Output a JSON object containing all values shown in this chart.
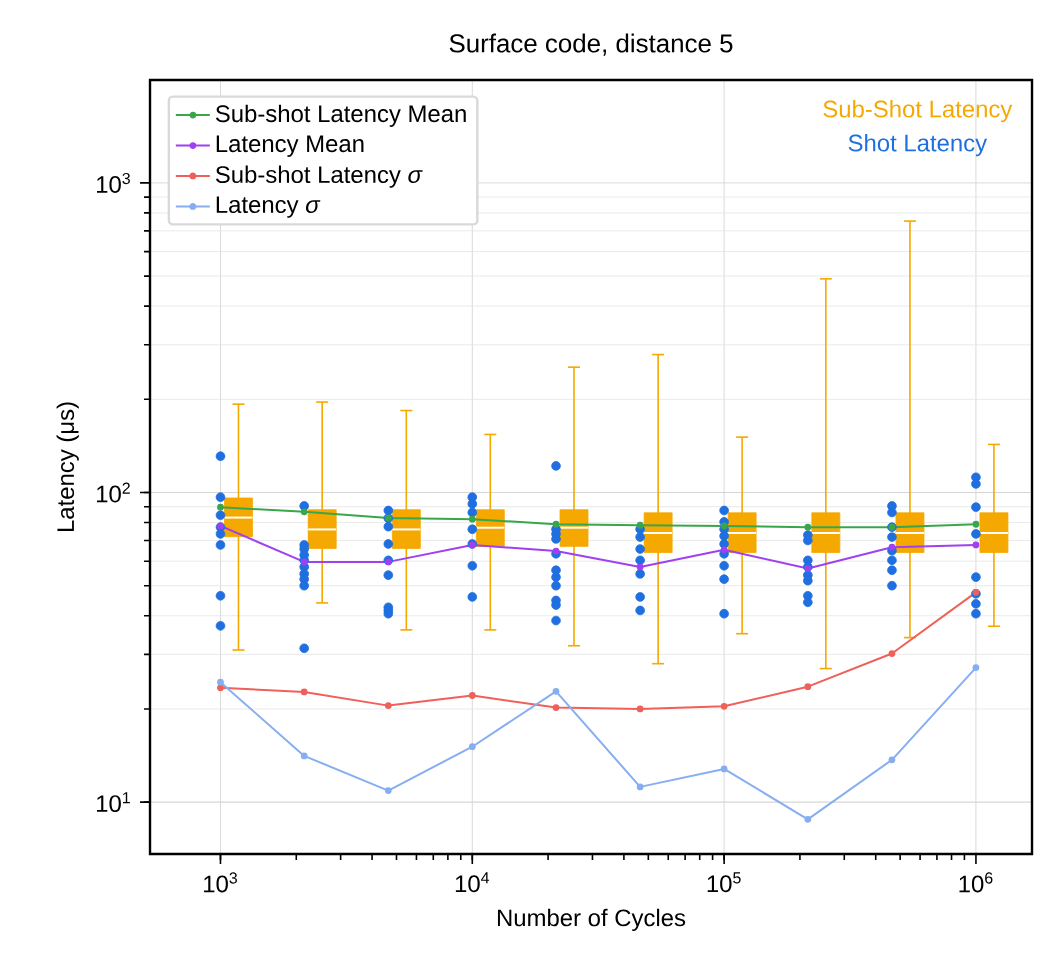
{
  "chart_data": {
    "type": "line",
    "title": "Surface code, distance 5",
    "xlabel": "Number of Cycles",
    "ylabel": "Latency (μs)",
    "log": "xy",
    "grid": true,
    "legend": "top left",
    "marker": "circle",
    "line_style": "solid",
    "x": [
      1000,
      2150,
      4640,
      10000,
      21500,
      46400,
      100000,
      215000,
      464000,
      1000000
    ],
    "xlim": [
      525,
      1670000
    ],
    "ylim": [
      6.8,
      2150
    ],
    "xticks": [
      {
        "value": 1000,
        "label": "10$^{3}$"
      },
      {
        "value": 10000,
        "label": "10$^{4}$"
      },
      {
        "value": 100000,
        "label": "10$^{5}$"
      },
      {
        "value": 1000000,
        "label": "10$^{6}$"
      }
    ],
    "yticks": [
      {
        "value": 10,
        "label": "10$^{1}$"
      },
      {
        "value": 100,
        "label": "10$^{2}$"
      },
      {
        "value": 1000,
        "label": "10$^{3}$"
      }
    ],
    "series": [
      {
        "type": "box",
        "name": "Sub-Shot Latency",
        "color": "#f5a800",
        "boxes": [
          {
            "low": 31,
            "q1": 72,
            "median": 83,
            "q3": 96,
            "high": 193
          },
          {
            "low": 44,
            "q1": 66,
            "median": 76,
            "q3": 88,
            "high": 196
          },
          {
            "low": 36,
            "q1": 66,
            "median": 76,
            "q3": 88,
            "high": 184
          },
          {
            "low": 36,
            "q1": 67,
            "median": 77,
            "q3": 88,
            "high": 154
          },
          {
            "low": 32,
            "q1": 67,
            "median": 77,
            "q3": 88,
            "high": 254
          },
          {
            "low": 28,
            "q1": 64,
            "median": 74,
            "q3": 86,
            "high": 279
          },
          {
            "low": 35,
            "q1": 64,
            "median": 74,
            "q3": 86,
            "high": 151
          },
          {
            "low": 27,
            "q1": 64,
            "median": 74,
            "q3": 86,
            "high": 490
          },
          {
            "low": 34,
            "q1": 64,
            "median": 74,
            "q3": 86,
            "high": 753
          },
          {
            "low": 37,
            "q1": 64,
            "median": 74,
            "q3": 86,
            "high": 143
          }
        ]
      },
      {
        "type": "scatter",
        "name": "Shot Latency",
        "color": "#1f6fe0",
        "x": [
          1000,
          1000,
          1000,
          1000,
          1000,
          1000,
          1000,
          1000,
          2150,
          2150,
          2150,
          2150,
          2150,
          2150,
          2150,
          2150,
          2150,
          2150,
          4640,
          4640,
          4640,
          4640,
          4640,
          4640,
          4640,
          4640,
          4640,
          10000,
          10000,
          10000,
          10000,
          10000,
          10000,
          10000,
          21500,
          21500,
          21500,
          21500,
          21500,
          21500,
          21500,
          21500,
          21500,
          21500,
          21500,
          46400,
          46400,
          46400,
          46400,
          46400,
          46400,
          46400,
          100000,
          100000,
          100000,
          100000,
          100000,
          100000,
          100000,
          100000,
          100000,
          215000,
          215000,
          215000,
          215000,
          215000,
          215000,
          215000,
          215000,
          464000,
          464000,
          464000,
          464000,
          464000,
          464000,
          464000,
          464000,
          1000000,
          1000000,
          1000000,
          1000000,
          1000000,
          1000000,
          1000000,
          1000000
        ],
        "values": [
          131,
          96.6,
          84.5,
          77.3,
          73.5,
          67.7,
          46.4,
          37.1,
          90.5,
          67.7,
          65.7,
          62.8,
          60.4,
          57.5,
          54.6,
          52.5,
          50,
          31.4,
          87.5,
          82.6,
          77.6,
          68.2,
          60.4,
          54.1,
          42.6,
          41.6,
          40.6,
          96.6,
          91.9,
          86.2,
          76.1,
          68.2,
          58,
          46,
          121.9,
          76.1,
          73.5,
          70.8,
          63.4,
          56.1,
          53.3,
          50,
          44.8,
          43.3,
          38.6,
          76.1,
          71.8,
          65.7,
          60.4,
          54.6,
          46,
          41.6,
          87.5,
          80.4,
          76.1,
          72.4,
          68.2,
          63.4,
          58,
          52.5,
          40.6,
          72.9,
          70,
          60.4,
          57.5,
          54.1,
          51.9,
          46.4,
          44.2,
          90.5,
          86.2,
          77.3,
          71.8,
          64.9,
          60.4,
          56.1,
          50,
          112,
          106.6,
          89.7,
          73.5,
          53.3,
          47.1,
          43.7,
          40.6
        ]
      },
      {
        "name": "Sub-shot Latency Mean",
        "color": "#3aa64c",
        "values": [
          89.7,
          86.6,
          82.8,
          82,
          79,
          78.4,
          78,
          77.3,
          77.3,
          79
        ]
      },
      {
        "name": "Latency Mean",
        "color": "#a040f0",
        "values": [
          78,
          59.7,
          59.7,
          67.7,
          64.7,
          57.5,
          65.3,
          56.8,
          66.6,
          67.7
        ]
      },
      {
        "name": "Sub-shot Latency *σ*",
        "color": "#f0605a",
        "values": [
          23.4,
          22.7,
          20.5,
          22.1,
          20.2,
          20,
          20.4,
          23.6,
          30.2,
          47.6
        ]
      },
      {
        "name": "Latency *σ*",
        "color": "#86aef0",
        "values": [
          24.4,
          14.1,
          10.9,
          15.1,
          22.8,
          11.2,
          12.8,
          8.8,
          13.7,
          27.2
        ]
      }
    ]
  }
}
